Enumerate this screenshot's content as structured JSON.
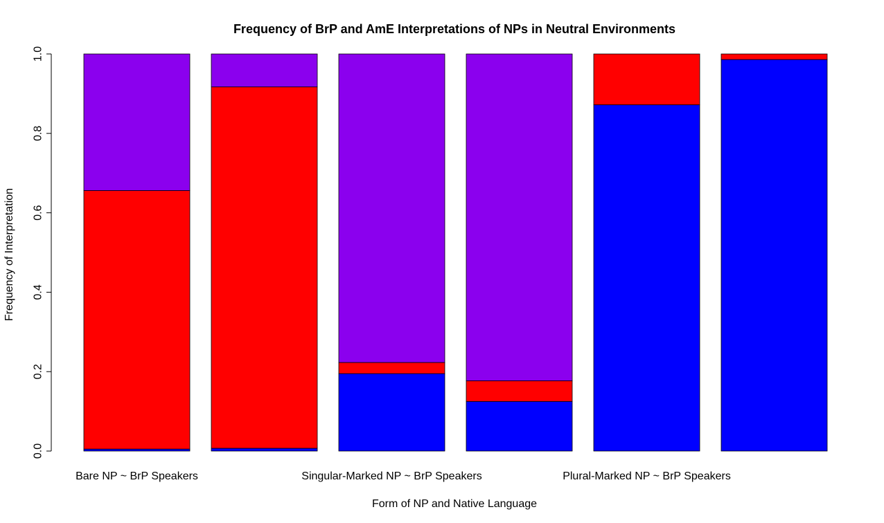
{
  "chart_data": {
    "type": "bar",
    "stacked": true,
    "title": "Frequency of BrP and AmE Interpretations of NPs in Neutral Environments",
    "xlabel": "Form of NP and Native Language",
    "ylabel": "Frequency of Interpretation",
    "ylim": [
      0,
      1
    ],
    "yticks": [
      "0.0",
      "0.2",
      "0.4",
      "0.6",
      "0.8",
      "1.0"
    ],
    "ytick_values": [
      0,
      0.2,
      0.4,
      0.6,
      0.8,
      1.0
    ],
    "category_labels": [
      "Bare NP ~ BrP Speakers",
      "",
      "Singular-Marked NP ~ BrP Speakers",
      "",
      "Plural-Marked NP ~ BrP Speakers",
      ""
    ],
    "series": [
      {
        "name": "blue",
        "color": "#0000ff",
        "values": [
          0.005,
          0.007,
          0.195,
          0.125,
          0.872,
          0.986
        ]
      },
      {
        "name": "red",
        "color": "#ff0000",
        "values": [
          0.651,
          0.91,
          0.028,
          0.052,
          0.128,
          0.014
        ]
      },
      {
        "name": "purple",
        "color": "#8b00ee",
        "values": [
          0.344,
          0.083,
          0.777,
          0.823,
          0.0,
          0.0
        ]
      }
    ]
  }
}
